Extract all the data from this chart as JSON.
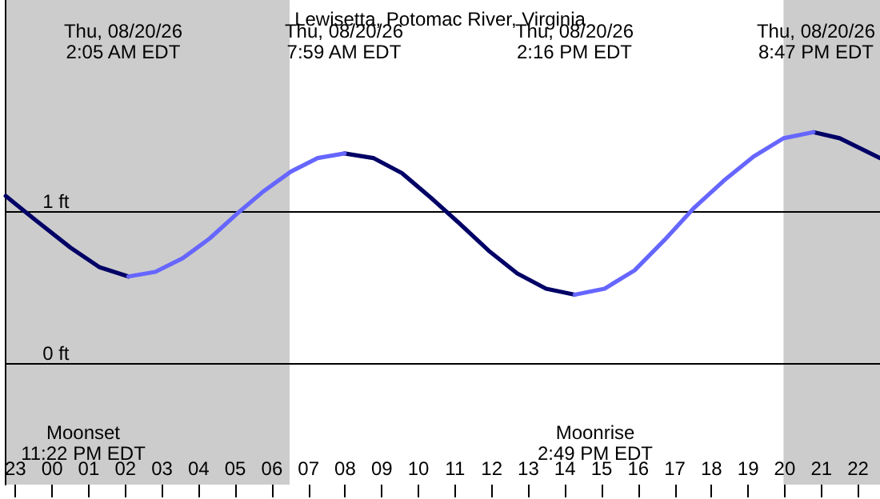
{
  "chart_data": {
    "type": "line",
    "title": "Lewisetta, Potomac River, Virginia",
    "xlim": [
      "--08-19T22:44",
      "--08-20T22:36"
    ],
    "ylim": [
      -0.8,
      2.39
    ],
    "xticks": [
      {
        "value": "--08-19T23:00",
        "label": "23"
      },
      {
        "value": "--08-20T00:00",
        "label": "00"
      },
      {
        "value": "--08-20T01:00",
        "label": "01"
      },
      {
        "value": "--08-20T02:00",
        "label": "02"
      },
      {
        "value": "--08-20T03:00",
        "label": "03"
      },
      {
        "value": "--08-20T04:00",
        "label": "04"
      },
      {
        "value": "--08-20T05:00",
        "label": "05"
      },
      {
        "value": "--08-20T06:00",
        "label": "06"
      },
      {
        "value": "--08-20T07:00",
        "label": "07"
      },
      {
        "value": "--08-20T08:00",
        "label": "08"
      },
      {
        "value": "--08-20T09:00",
        "label": "09"
      },
      {
        "value": "--08-20T10:00",
        "label": "10"
      },
      {
        "value": "--08-20T11:00",
        "label": "11"
      },
      {
        "value": "--08-20T12:00",
        "label": "12"
      },
      {
        "value": "--08-20T13:00",
        "label": "13"
      },
      {
        "value": "--08-20T14:00",
        "label": "14"
      },
      {
        "value": "--08-20T15:00",
        "label": "15"
      },
      {
        "value": "--08-20T16:00",
        "label": "16"
      },
      {
        "value": "--08-20T17:00",
        "label": "17"
      },
      {
        "value": "--08-20T18:00",
        "label": "18"
      },
      {
        "value": "--08-20T19:00",
        "label": "19"
      },
      {
        "value": "--08-20T20:00",
        "label": "20"
      },
      {
        "value": "--08-20T21:00",
        "label": "21"
      },
      {
        "value": "--08-20T22:00",
        "label": "22"
      }
    ],
    "yticks": [
      {
        "value": 0,
        "label": "0 ft"
      },
      {
        "value": 1,
        "label": "1 ft"
      }
    ],
    "grid": "y",
    "marker": "none",
    "line_style": "solid",
    "bands": [
      {
        "axis": "x",
        "from": "--08-19T22:44",
        "to": "--08-20T06:29",
        "color": "#cccccc"
      },
      {
        "axis": "x",
        "from": "--08-20T19:58",
        "to": "--08-20T22:36",
        "color": "#cccccc"
      }
    ],
    "series": [
      {
        "color": "#000066",
        "x": [
          "--08-19T22:44",
          "--08-19T23:30",
          "--08-20T00:30",
          "--08-20T01:18",
          "--08-20T02:05",
          null,
          "--08-20T07:59",
          "--08-20T08:46",
          "--08-20T09:33",
          "--08-20T10:20",
          "--08-20T11:07",
          "--08-20T11:55",
          "--08-20T12:42",
          "--08-20T13:29",
          "--08-20T14:16",
          null,
          "--08-20T20:47",
          "--08-20T21:30",
          "--08-20T22:36"
        ],
        "values": [
          1.1,
          0.95,
          0.76,
          0.63,
          0.57,
          null,
          1.38,
          1.35,
          1.25,
          1.09,
          0.92,
          0.74,
          0.59,
          0.49,
          0.45,
          null,
          1.52,
          1.48,
          1.35
        ]
      },
      {
        "color": "#6666ff",
        "x": [
          "--08-20T02:05",
          "--08-20T02:49",
          "--08-20T03:34",
          "--08-20T04:18",
          "--08-20T05:02",
          "--08-20T05:46",
          "--08-20T06:31",
          "--08-20T07:15",
          "--08-20T07:59",
          null,
          "--08-20T14:16",
          "--08-20T15:05",
          "--08-20T15:54",
          "--08-20T16:43",
          "--08-20T17:31",
          "--08-20T18:20",
          "--08-20T19:09",
          "--08-20T19:58",
          "--08-20T20:47"
        ],
        "values": [
          0.57,
          0.6,
          0.69,
          0.82,
          0.98,
          1.13,
          1.26,
          1.35,
          1.38,
          null,
          0.45,
          0.49,
          0.61,
          0.81,
          1.02,
          1.2,
          1.36,
          1.48,
          1.52
        ]
      }
    ],
    "annotations": [
      "Thu, 08/20/26\n2:05 AM EDT",
      "Thu, 08/20/26\n7:59 AM EDT",
      "Thu, 08/20/26\n2:16 PM EDT",
      "Thu, 08/20/26\n8:47 PM EDT",
      "Moonset\n11:22 PM EDT",
      "Moonrise\n2:49 PM EDT"
    ]
  }
}
